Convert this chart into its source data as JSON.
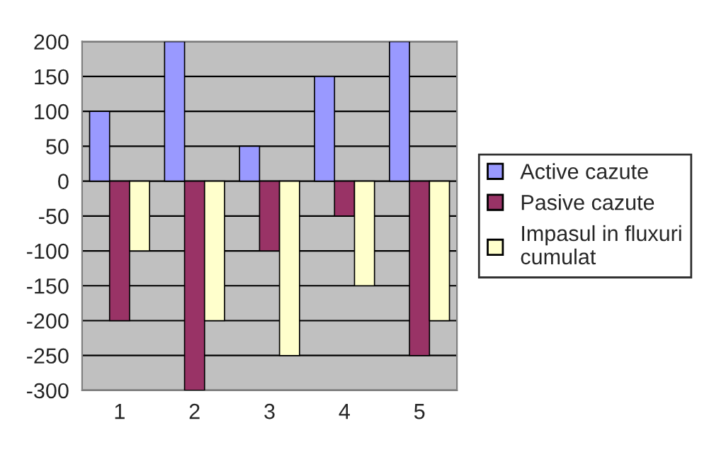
{
  "chart_data": {
    "type": "bar",
    "categories": [
      "1",
      "2",
      "3",
      "4",
      "5"
    ],
    "series": [
      {
        "name": "Active cazute",
        "color": "#9999ff",
        "values": [
          100,
          200,
          50,
          150,
          200
        ]
      },
      {
        "name": "Pasive cazute",
        "color": "#993366",
        "values": [
          -200,
          -300,
          -100,
          -50,
          -250
        ]
      },
      {
        "name": "Impasul in fluxuri cumulat",
        "color": "#ffffcc",
        "values": [
          -100,
          -200,
          -250,
          -150,
          -200
        ]
      }
    ],
    "ylim": [
      -300,
      200
    ],
    "yticks": [
      -300,
      -250,
      -200,
      -150,
      -100,
      -50,
      0,
      50,
      100,
      150,
      200
    ],
    "grid": "y",
    "legend": "right"
  }
}
